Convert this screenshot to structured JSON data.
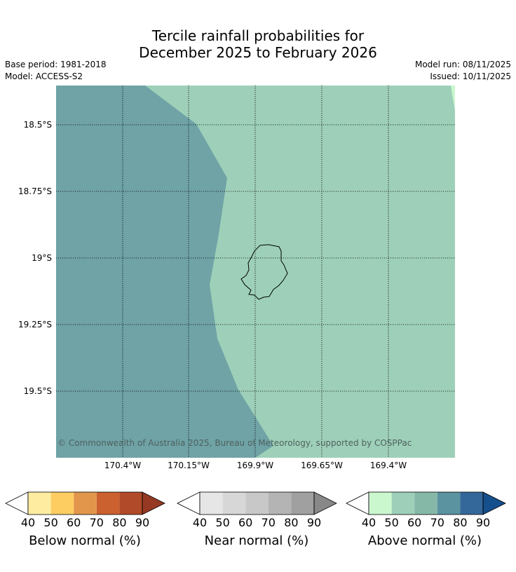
{
  "title_line1": "Tercile rainfall probabilities for",
  "title_line2": "December 2025 to February 2026",
  "meta_left": {
    "base_period": "Base period: 1981-2018",
    "model": "Model: ACCESS-S2"
  },
  "meta_right": {
    "model_run": "Model run: 08/11/2025",
    "issued": "Issued: 10/11/2025"
  },
  "lat_labels": [
    "18.5°S",
    "18.75°S",
    "19°S",
    "19.25°S",
    "19.5°S"
  ],
  "lon_labels": [
    "170.4°W",
    "170.15°W",
    "169.9°W",
    "169.65°W",
    "169.4°W"
  ],
  "copyright": "© Commonwealth of Australia 2025, Bureau of Meteorology, supported by COSPPac",
  "map_colors": {
    "above_70": "#6fa3a6",
    "above_60": "#9ed0b9",
    "above_50": "#cbf7cf",
    "coastline": "#000000"
  },
  "legends": [
    {
      "title": "Below normal (%)",
      "ticks": [
        "40",
        "50",
        "60",
        "70",
        "80",
        "90"
      ],
      "colors": [
        "#ffffff",
        "#feeda0",
        "#fecd62",
        "#e2964b",
        "#cc6130",
        "#b14a28",
        "#953923"
      ]
    },
    {
      "title": "Near normal (%)",
      "ticks": [
        "40",
        "50",
        "60",
        "70",
        "80",
        "90"
      ],
      "colors": [
        "#ffffff",
        "#e6e6e6",
        "#d7d7d7",
        "#c8c8c8",
        "#b4b4b4",
        "#a0a0a0",
        "#888888"
      ]
    },
    {
      "title": "Above normal (%)",
      "ticks": [
        "40",
        "50",
        "60",
        "70",
        "80",
        "90"
      ],
      "colors": [
        "#ffffff",
        "#cbf7cf",
        "#9ed0b9",
        "#86b8a8",
        "#5b93a0",
        "#34689a",
        "#154f8c"
      ]
    }
  ]
}
